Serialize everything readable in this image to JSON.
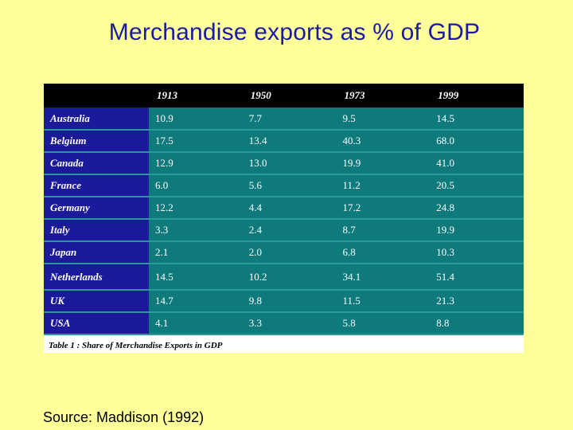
{
  "slide": {
    "title": "Merchandise exports as % of GDP",
    "source": "Source:  Maddison (1992)"
  },
  "table": {
    "caption": "Table 1 : Share of Merchandise Exports in GDP"
  },
  "chart_data": {
    "type": "table",
    "columns": [
      "1913",
      "1950",
      "1973",
      "1999"
    ],
    "rows": [
      {
        "label": "Australia",
        "values": [
          "10.9",
          "7.7",
          "9.5",
          "14.5"
        ]
      },
      {
        "label": "Belgium",
        "values": [
          "17.5",
          "13.4",
          "40.3",
          "68.0"
        ]
      },
      {
        "label": "Canada",
        "values": [
          "12.9",
          "13.0",
          "19.9",
          "41.0"
        ]
      },
      {
        "label": "France",
        "values": [
          "6.0",
          "5.6",
          "11.2",
          "20.5"
        ]
      },
      {
        "label": "Germany",
        "values": [
          "12.2",
          "4.4",
          "17.2",
          "24.8"
        ]
      },
      {
        "label": "Italy",
        "values": [
          "3.3",
          "2.4",
          "8.7",
          "19.9"
        ]
      },
      {
        "label": "Japan",
        "values": [
          "2.1",
          "2.0",
          "6.8",
          "10.3"
        ]
      },
      {
        "label": "Netherlands",
        "values": [
          "14.5",
          "10.2",
          "34.1",
          "51.4"
        ]
      },
      {
        "label": "UK",
        "values": [
          "14.7",
          "9.8",
          "11.5",
          "21.3"
        ]
      },
      {
        "label": "USA",
        "values": [
          "4.1",
          "3.3",
          "5.8",
          "8.8"
        ]
      }
    ]
  },
  "colors": {
    "background": "#ffff99",
    "title": "#1a1aa6",
    "header_row": "#000000",
    "label_column": "#1a1a9a",
    "data_cells": "#0e7a7c"
  }
}
